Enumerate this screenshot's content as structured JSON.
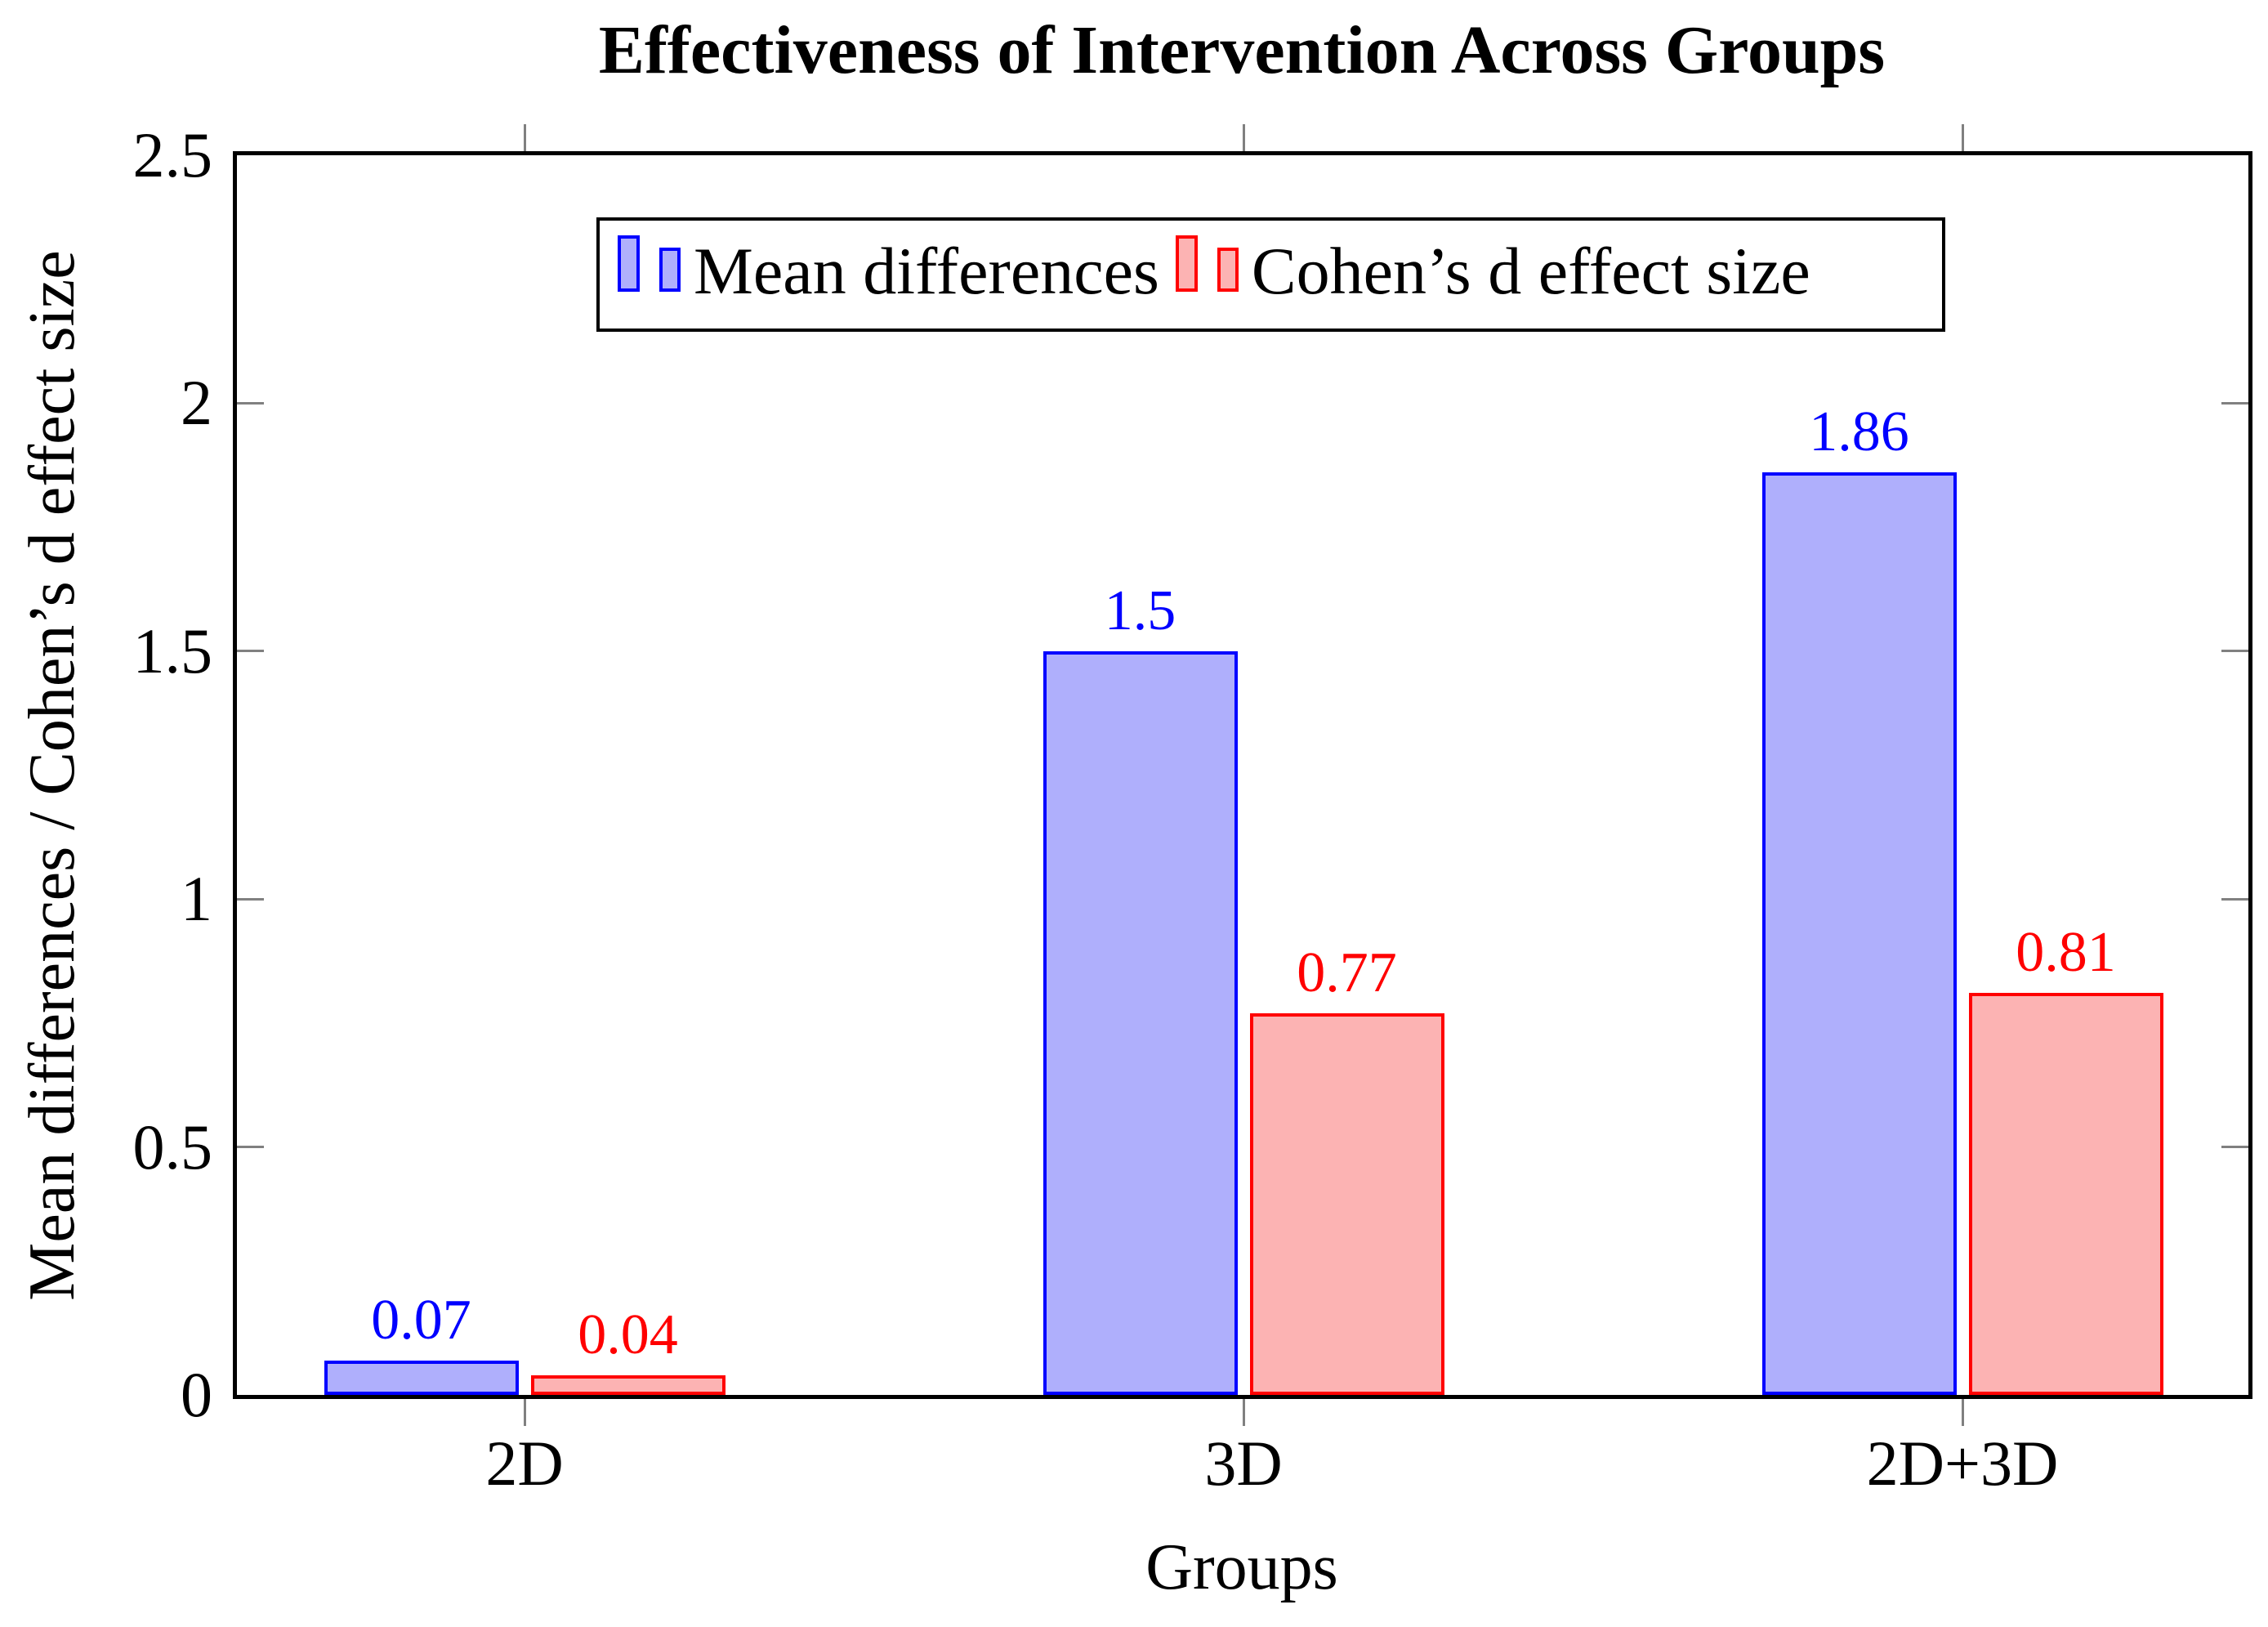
{
  "chart_data": {
    "type": "bar",
    "title": "Effectiveness of Intervention Across Groups",
    "xlabel": "Groups",
    "ylabel": "Mean differences / Cohen’s d effect size",
    "categories": [
      "2D",
      "3D",
      "2D+3D"
    ],
    "series": [
      {
        "name": "Mean differences",
        "values": [
          0.07,
          1.5,
          1.86
        ],
        "value_labels": [
          "0.07",
          "1.5",
          "1.86"
        ],
        "border_color": "#0000FF",
        "fill_color": "#AFAFFC"
      },
      {
        "name": "Cohen’s d effect size",
        "values": [
          0.04,
          0.77,
          0.81
        ],
        "value_labels": [
          "0.04",
          "0.77",
          "0.81"
        ],
        "border_color": "#FF0000",
        "fill_color": "#FCB3B3"
      }
    ],
    "ylim": [
      0,
      2.5
    ],
    "yticks": [
      0,
      0.5,
      1,
      1.5,
      2,
      2.5
    ],
    "ytick_labels": [
      "0",
      "0.5",
      "1",
      "1.5",
      "2",
      "2.5"
    ],
    "grid": false,
    "legend_position": "top-center",
    "value_labels_shown": true
  },
  "colors": {
    "axis_frame": "#000000",
    "tick_marks": "#808080",
    "background": "#FFFFFF",
    "title_text": "#000000"
  }
}
